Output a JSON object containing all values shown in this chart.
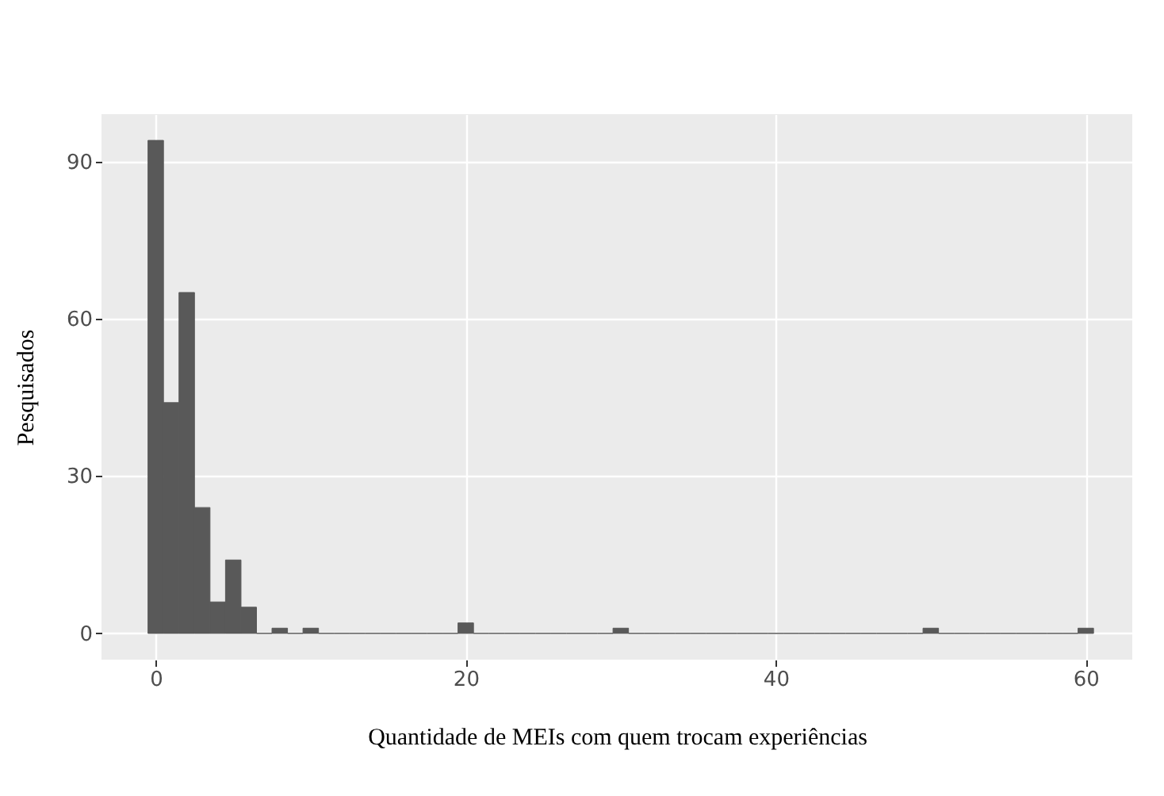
{
  "chart_data": {
    "type": "histogram",
    "xlabel": "Quantidade de MEIs com quem trocam experiências",
    "ylabel": "Pesquisados",
    "color": "#595959",
    "bins": [
      -0.5,
      0.5,
      1.5,
      2.5,
      3.5,
      4.5,
      5.5,
      6.5,
      7.5,
      8.5,
      9.5,
      10.5,
      11.5,
      12.5,
      13.5,
      14.5,
      15.5,
      16.5,
      17.5,
      18.5,
      19.5,
      20.5,
      21.5,
      22.5,
      23.5,
      24.5,
      25.5,
      26.5,
      27.5,
      28.5,
      29.5,
      30.5,
      31.5,
      32.5,
      33.5,
      34.5,
      35.5,
      36.5,
      37.5,
      38.5,
      39.5,
      40.5,
      41.5,
      42.5,
      43.5,
      44.5,
      45.5,
      46.5,
      47.5,
      48.5,
      49.5,
      50.5,
      51.5,
      52.5,
      53.5,
      54.5,
      55.5,
      56.5,
      57.5,
      58.5,
      59.5,
      60.5
    ],
    "values": [
      94,
      44,
      65,
      24,
      6,
      14,
      5,
      0,
      1,
      0,
      1,
      0,
      0,
      0,
      0,
      0,
      0,
      0,
      0,
      0,
      2,
      0,
      0,
      0,
      0,
      0,
      0,
      0,
      0,
      0,
      1,
      0,
      0,
      0,
      0,
      0,
      0,
      0,
      0,
      0,
      0,
      0,
      0,
      0,
      0,
      0,
      0,
      0,
      0,
      0,
      1,
      0,
      0,
      0,
      0,
      0,
      0,
      0,
      0,
      0,
      1
    ],
    "xlim": [
      -3.5,
      63
    ],
    "ylim": [
      -5,
      99
    ],
    "xticks": [
      0,
      20,
      40,
      60
    ],
    "yticks": [
      0,
      30,
      60,
      90
    ],
    "grid": true
  }
}
